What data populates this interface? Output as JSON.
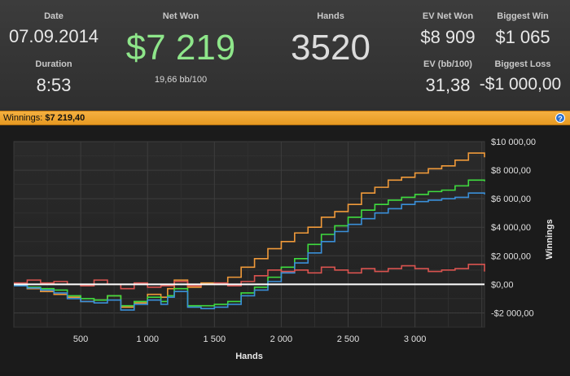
{
  "stats": {
    "date": {
      "label": "Date",
      "value": "07.09.2014"
    },
    "duration": {
      "label": "Duration",
      "value": "8:53"
    },
    "net_won": {
      "label": "Net Won",
      "value": "$7 219",
      "sub": "19,66 bb/100"
    },
    "hands": {
      "label": "Hands",
      "value": "3520"
    },
    "ev_net_won": {
      "label": "EV Net Won",
      "value": "$8 909"
    },
    "ev_bb": {
      "label": "EV (bb/100)",
      "value": "31,38"
    },
    "biggest_win": {
      "label": "Biggest Win",
      "value": "$1 065"
    },
    "biggest_loss": {
      "label": "Biggest Loss",
      "value": "-$1 000,00"
    }
  },
  "banner": {
    "label": "Winnings:",
    "value": "$7 219,40"
  },
  "help_icon": "?",
  "colors": {
    "net_won": "#8ee68a",
    "orange": "#f09a3a",
    "green": "#3fdc3f",
    "blue": "#3a8fd8",
    "red": "#d9534f",
    "zero_line": "#ffffff"
  },
  "chart_data": {
    "type": "line",
    "xlabel": "Hands",
    "ylabel": "Winnings",
    "xlim": [
      0,
      3520
    ],
    "ylim": [
      -3000,
      10000
    ],
    "x_ticks": [
      500,
      1000,
      1500,
      2000,
      2500,
      3000
    ],
    "x_tick_labels": [
      "500",
      "1 000",
      "1 500",
      "2 000",
      "2 500",
      "3 000"
    ],
    "y_ticks": [
      -2000,
      0,
      2000,
      4000,
      6000,
      8000,
      10000
    ],
    "y_tick_labels": [
      "-$2 000,00",
      "$0,00",
      "$2 000,00",
      "$4 000,00",
      "$6 000,00",
      "$8 000,00",
      "$10 000,00"
    ],
    "grid": true,
    "series": [
      {
        "color": "#f09a3a",
        "points": [
          [
            0,
            0
          ],
          [
            100,
            -300
          ],
          [
            200,
            -500
          ],
          [
            300,
            -700
          ],
          [
            400,
            -900
          ],
          [
            500,
            -1200
          ],
          [
            600,
            -1100
          ],
          [
            700,
            -800
          ],
          [
            800,
            -1600
          ],
          [
            900,
            -1300
          ],
          [
            1000,
            -700
          ],
          [
            1100,
            -900
          ],
          [
            1150,
            -300
          ],
          [
            1200,
            300
          ],
          [
            1300,
            -200
          ],
          [
            1400,
            100
          ],
          [
            1500,
            0
          ],
          [
            1600,
            500
          ],
          [
            1700,
            1200
          ],
          [
            1800,
            1800
          ],
          [
            1900,
            2500
          ],
          [
            2000,
            3000
          ],
          [
            2100,
            3600
          ],
          [
            2200,
            4000
          ],
          [
            2300,
            4700
          ],
          [
            2400,
            5100
          ],
          [
            2500,
            5600
          ],
          [
            2600,
            6400
          ],
          [
            2700,
            6800
          ],
          [
            2800,
            7300
          ],
          [
            2900,
            7500
          ],
          [
            3000,
            7800
          ],
          [
            3100,
            8100
          ],
          [
            3200,
            8300
          ],
          [
            3300,
            8700
          ],
          [
            3400,
            9200
          ],
          [
            3520,
            8900
          ]
        ]
      },
      {
        "color": "#3fdc3f",
        "points": [
          [
            0,
            -50
          ],
          [
            100,
            -200
          ],
          [
            200,
            -300
          ],
          [
            300,
            -400
          ],
          [
            400,
            -800
          ],
          [
            500,
            -1000
          ],
          [
            600,
            -1100
          ],
          [
            700,
            -800
          ],
          [
            800,
            -1500
          ],
          [
            900,
            -1200
          ],
          [
            1000,
            -900
          ],
          [
            1100,
            -1200
          ],
          [
            1150,
            -800
          ],
          [
            1200,
            -300
          ],
          [
            1300,
            -1500
          ],
          [
            1400,
            -1500
          ],
          [
            1500,
            -1400
          ],
          [
            1600,
            -1200
          ],
          [
            1700,
            -600
          ],
          [
            1800,
            -200
          ],
          [
            1900,
            500
          ],
          [
            2000,
            1200
          ],
          [
            2100,
            1800
          ],
          [
            2200,
            2800
          ],
          [
            2300,
            3500
          ],
          [
            2400,
            4100
          ],
          [
            2500,
            4700
          ],
          [
            2600,
            5200
          ],
          [
            2700,
            5600
          ],
          [
            2800,
            5900
          ],
          [
            2900,
            6100
          ],
          [
            3000,
            6300
          ],
          [
            3100,
            6500
          ],
          [
            3200,
            6600
          ],
          [
            3300,
            6900
          ],
          [
            3400,
            7300
          ],
          [
            3520,
            7219
          ]
        ]
      },
      {
        "color": "#3a8fd8",
        "points": [
          [
            0,
            -100
          ],
          [
            100,
            -250
          ],
          [
            200,
            -400
          ],
          [
            300,
            -600
          ],
          [
            400,
            -1000
          ],
          [
            500,
            -1200
          ],
          [
            600,
            -1300
          ],
          [
            700,
            -1100
          ],
          [
            800,
            -1800
          ],
          [
            900,
            -1400
          ],
          [
            1000,
            -1100
          ],
          [
            1100,
            -1400
          ],
          [
            1150,
            -900
          ],
          [
            1200,
            -500
          ],
          [
            1300,
            -1600
          ],
          [
            1400,
            -1700
          ],
          [
            1500,
            -1600
          ],
          [
            1600,
            -1400
          ],
          [
            1700,
            -800
          ],
          [
            1800,
            -400
          ],
          [
            1900,
            200
          ],
          [
            2000,
            800
          ],
          [
            2100,
            1500
          ],
          [
            2200,
            2200
          ],
          [
            2300,
            3000
          ],
          [
            2400,
            3700
          ],
          [
            2500,
            4200
          ],
          [
            2600,
            4600
          ],
          [
            2700,
            5000
          ],
          [
            2800,
            5300
          ],
          [
            2900,
            5600
          ],
          [
            3000,
            5800
          ],
          [
            3100,
            5900
          ],
          [
            3200,
            6000
          ],
          [
            3300,
            6100
          ],
          [
            3400,
            6400
          ],
          [
            3520,
            6300
          ]
        ]
      },
      {
        "color": "#d9534f",
        "points": [
          [
            0,
            100
          ],
          [
            100,
            300
          ],
          [
            200,
            100
          ],
          [
            300,
            200
          ],
          [
            400,
            0
          ],
          [
            500,
            -100
          ],
          [
            600,
            300
          ],
          [
            700,
            0
          ],
          [
            800,
            -300
          ],
          [
            900,
            100
          ],
          [
            1000,
            -200
          ],
          [
            1100,
            -100
          ],
          [
            1200,
            200
          ],
          [
            1300,
            -100
          ],
          [
            1400,
            0
          ],
          [
            1500,
            100
          ],
          [
            1600,
            -100
          ],
          [
            1700,
            200
          ],
          [
            1800,
            600
          ],
          [
            1900,
            1000
          ],
          [
            2000,
            900
          ],
          [
            2100,
            1000
          ],
          [
            2200,
            800
          ],
          [
            2300,
            1200
          ],
          [
            2400,
            1000
          ],
          [
            2500,
            800
          ],
          [
            2600,
            1100
          ],
          [
            2700,
            900
          ],
          [
            2800,
            1100
          ],
          [
            2900,
            1300
          ],
          [
            3000,
            1100
          ],
          [
            3100,
            900
          ],
          [
            3200,
            1000
          ],
          [
            3300,
            1100
          ],
          [
            3400,
            1400
          ],
          [
            3520,
            900
          ]
        ]
      }
    ]
  }
}
